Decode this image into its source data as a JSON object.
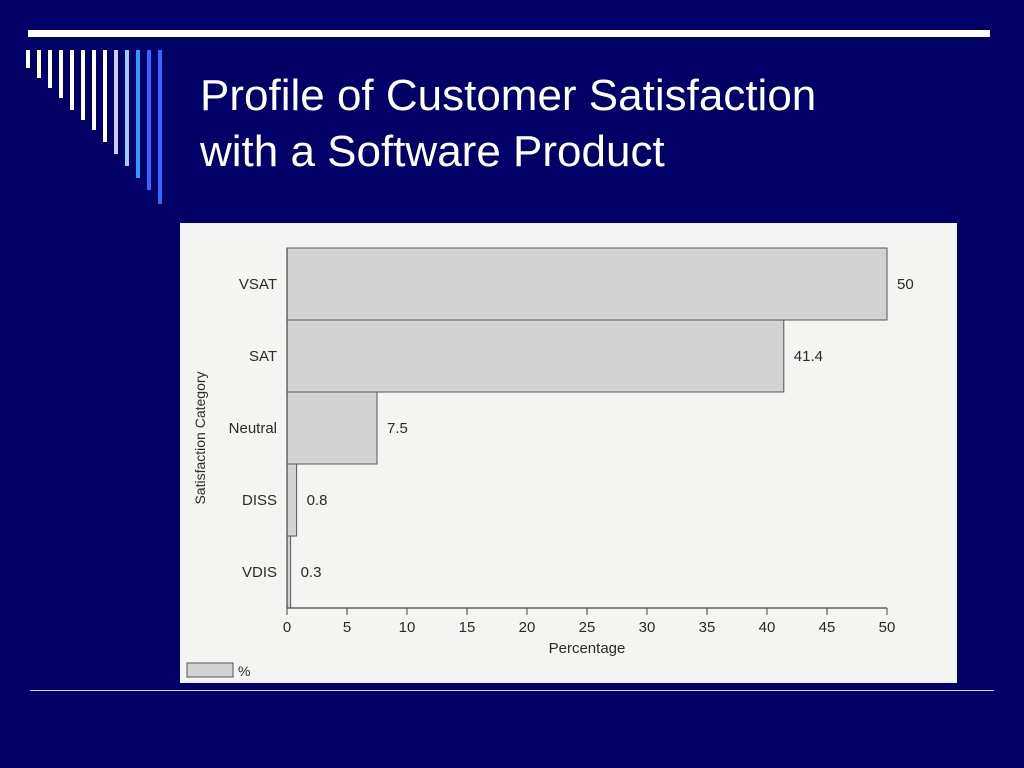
{
  "slide": {
    "title_line1": "Profile of Customer Satisfaction",
    "title_line2": "with a Software Product"
  },
  "colors": {
    "background": "#000066",
    "title": "#ffffff",
    "bar_fill": "#d3d3d3",
    "figure_bg": "#f4f5f2"
  },
  "chart_data": {
    "type": "bar",
    "orientation": "horizontal",
    "title": "",
    "xlabel": "Percentage",
    "ylabel": "Satisfaction Category",
    "categories": [
      "VSAT",
      "SAT",
      "Neutral",
      "DISS",
      "VDIS"
    ],
    "values": [
      50,
      41.4,
      7.5,
      0.8,
      0.3
    ],
    "value_labels": [
      "50",
      "41.4",
      "7.5",
      "0.8",
      "0.3"
    ],
    "xlim": [
      0,
      50
    ],
    "xticks": [
      0,
      5,
      10,
      15,
      20,
      25,
      30,
      35,
      40,
      45,
      50
    ],
    "legend": {
      "label": "%",
      "placement": "bottom-left"
    },
    "grid": false
  }
}
